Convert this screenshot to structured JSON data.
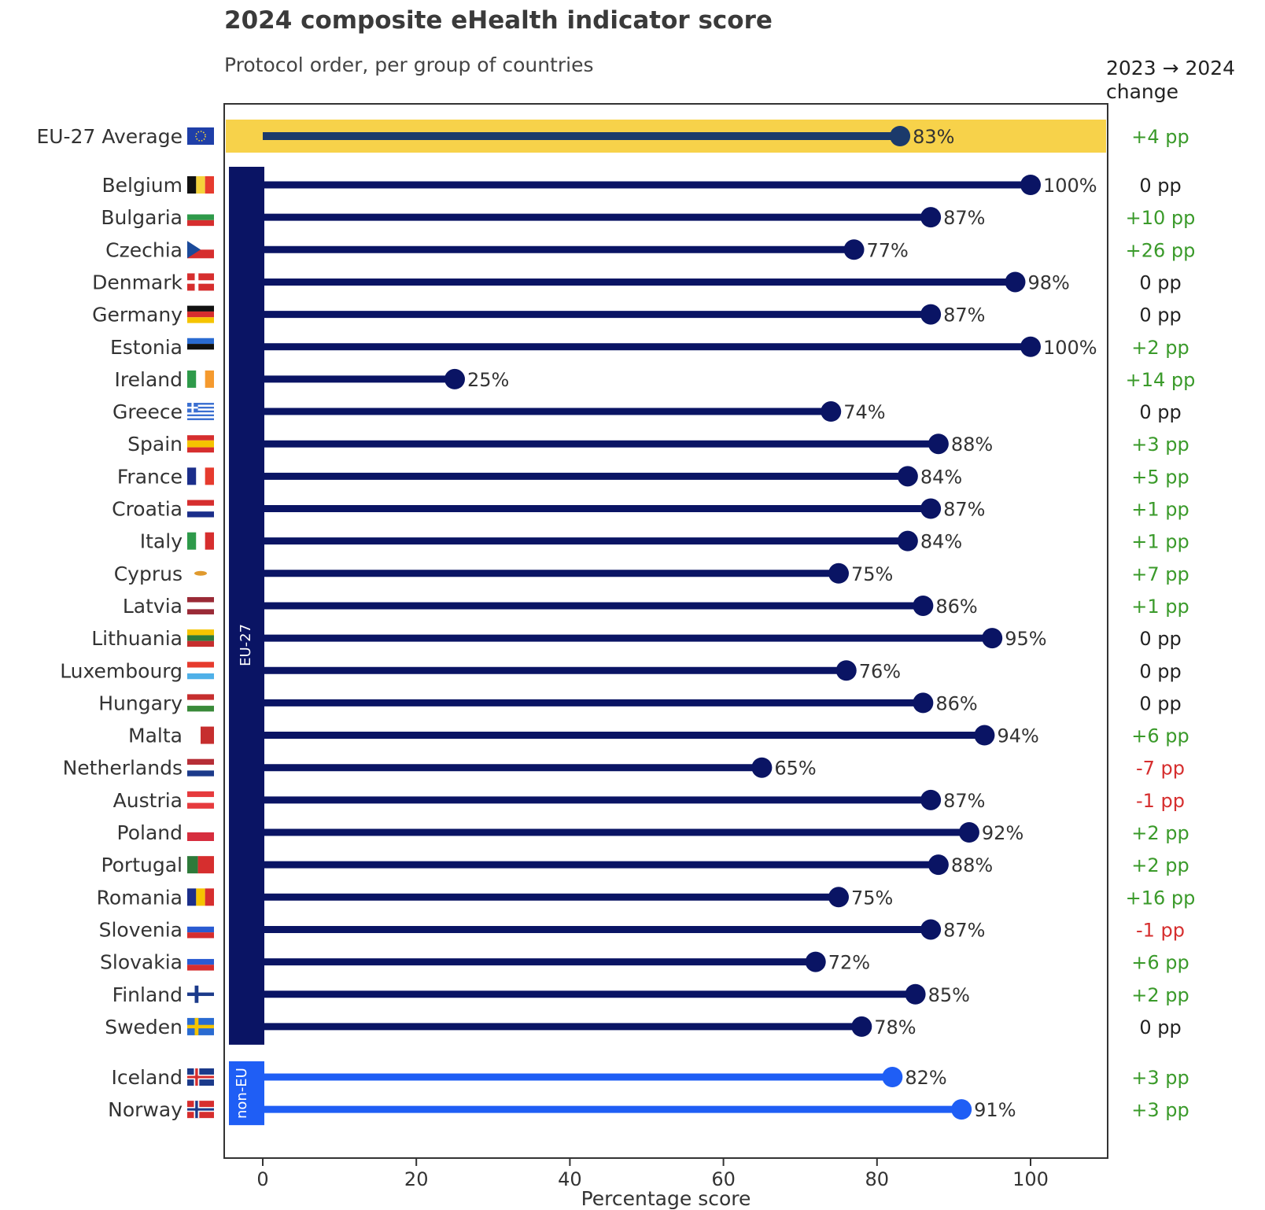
{
  "chart_data": {
    "type": "lollipop",
    "title": "2024 composite eHealth indicator score",
    "subtitle": "Protocol order, per group of countries",
    "xlabel": "Percentage score",
    "xlim": [
      -5,
      110
    ],
    "xticks": [
      0,
      20,
      40,
      60,
      80,
      100
    ],
    "change_header": [
      "2023 → 2024",
      "change"
    ],
    "group_labels": {
      "eu": "EU-27",
      "noneu": "non-EU"
    },
    "colors": {
      "average": "#1b3a6b",
      "eu": "#0a1464",
      "noneu": "#1f5ef5",
      "highlight": "#f7d24a",
      "positive": "#3a9a2a",
      "negative": "#d62e2e",
      "neutral": "#222222"
    },
    "average": {
      "name": "EU-27 Average",
      "value": 83,
      "label": "83%",
      "change": "+4 pp"
    },
    "eu_countries": [
      {
        "name": "Belgium",
        "value": 100,
        "label": "100%",
        "change": "0 pp"
      },
      {
        "name": "Bulgaria",
        "value": 87,
        "label": "87%",
        "change": "+10 pp"
      },
      {
        "name": "Czechia",
        "value": 77,
        "label": "77%",
        "change": "+26 pp"
      },
      {
        "name": "Denmark",
        "value": 98,
        "label": "98%",
        "change": "0 pp"
      },
      {
        "name": "Germany",
        "value": 87,
        "label": "87%",
        "change": "0 pp"
      },
      {
        "name": "Estonia",
        "value": 100,
        "label": "100%",
        "change": "+2 pp"
      },
      {
        "name": "Ireland",
        "value": 25,
        "label": "25%",
        "change": "+14 pp"
      },
      {
        "name": "Greece",
        "value": 74,
        "label": "74%",
        "change": "0 pp"
      },
      {
        "name": "Spain",
        "value": 88,
        "label": "88%",
        "change": "+3 pp"
      },
      {
        "name": "France",
        "value": 84,
        "label": "84%",
        "change": "+5 pp"
      },
      {
        "name": "Croatia",
        "value": 87,
        "label": "87%",
        "change": "+1 pp"
      },
      {
        "name": "Italy",
        "value": 84,
        "label": "84%",
        "change": "+1 pp"
      },
      {
        "name": "Cyprus",
        "value": 75,
        "label": "75%",
        "change": "+7 pp"
      },
      {
        "name": "Latvia",
        "value": 86,
        "label": "86%",
        "change": "+1 pp"
      },
      {
        "name": "Lithuania",
        "value": 95,
        "label": "95%",
        "change": "0 pp"
      },
      {
        "name": "Luxembourg",
        "value": 76,
        "label": "76%",
        "change": "0 pp"
      },
      {
        "name": "Hungary",
        "value": 86,
        "label": "86%",
        "change": "0 pp"
      },
      {
        "name": "Malta",
        "value": 94,
        "label": "94%",
        "change": "+6 pp"
      },
      {
        "name": "Netherlands",
        "value": 65,
        "label": "65%",
        "change": "-7 pp"
      },
      {
        "name": "Austria",
        "value": 87,
        "label": "87%",
        "change": "-1 pp"
      },
      {
        "name": "Poland",
        "value": 92,
        "label": "92%",
        "change": "+2 pp"
      },
      {
        "name": "Portugal",
        "value": 88,
        "label": "88%",
        "change": "+2 pp"
      },
      {
        "name": "Romania",
        "value": 75,
        "label": "75%",
        "change": "+16 pp"
      },
      {
        "name": "Slovenia",
        "value": 87,
        "label": "87%",
        "change": "-1 pp"
      },
      {
        "name": "Slovakia",
        "value": 72,
        "label": "72%",
        "change": "+6 pp"
      },
      {
        "name": "Finland",
        "value": 85,
        "label": "85%",
        "change": "+2 pp"
      },
      {
        "name": "Sweden",
        "value": 78,
        "label": "78%",
        "change": "0 pp"
      }
    ],
    "noneu_countries": [
      {
        "name": "Iceland",
        "value": 82,
        "label": "82%",
        "change": "+3 pp"
      },
      {
        "name": "Norway",
        "value": 91,
        "label": "91%",
        "change": "+3 pp"
      }
    ]
  }
}
